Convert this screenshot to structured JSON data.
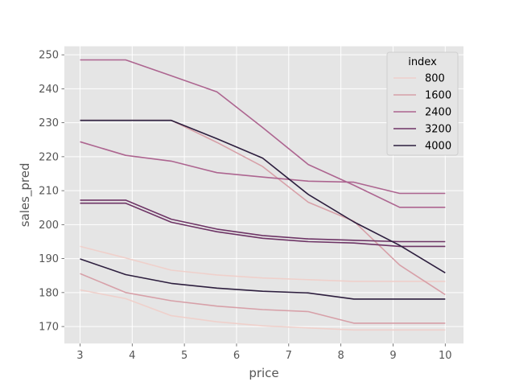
{
  "chart_data": {
    "type": "line",
    "title": "",
    "xlabel": "price",
    "ylabel": "sales_pred",
    "xlim": [
      2.7,
      10.35
    ],
    "ylim": [
      165,
      252.5
    ],
    "xticks": [
      3,
      4,
      5,
      6,
      7,
      8,
      9,
      10
    ],
    "yticks": [
      170,
      180,
      190,
      200,
      210,
      220,
      230,
      240,
      250
    ],
    "grid": true,
    "style": "ggplot",
    "legend": {
      "title": "index",
      "placement": "top-right",
      "labels": [
        "800",
        "1600",
        "2400",
        "3200",
        "4000"
      ]
    },
    "series": [
      {
        "name": "800",
        "color": "#efd0cb",
        "lines": [
          {
            "x": [
              3,
              3.875,
              4.75,
              5.625,
              6.5,
              7.375,
              8.25,
              9.125,
              10
            ],
            "y": [
              193.6,
              190.2,
              186.6,
              185.2,
              184.3,
              183.8,
              183.3,
              183.3,
              183.3
            ]
          },
          {
            "x": [
              3,
              3.875,
              4.75,
              5.625,
              6.5,
              7.375,
              8.25,
              9.125,
              10
            ],
            "y": [
              180.8,
              178.2,
              173.2,
              171.4,
              170.2,
              169.6,
              169.0,
              169.0,
              169.0
            ]
          }
        ]
      },
      {
        "name": "1600",
        "color": "#d7a0a8",
        "lines": [
          {
            "x": [
              3,
              3.875,
              4.75,
              5.625,
              6.5,
              7.375,
              8.25,
              9.125,
              10
            ],
            "y": [
              185.6,
              180.0,
              177.6,
              176.0,
              175.0,
              174.4,
              171.0,
              171.0,
              171.0
            ]
          },
          {
            "x": [
              3,
              3.875,
              4.75,
              5.625,
              6.5,
              7.375,
              8.25,
              9.125,
              10
            ],
            "y": [
              230.7,
              230.7,
              230.7,
              224.2,
              217.1,
              206.6,
              201.0,
              188.1,
              179.4
            ]
          }
        ]
      },
      {
        "name": "2400",
        "color": "#ad6590",
        "lines": [
          {
            "x": [
              3,
              3.875,
              4.75,
              5.625,
              6.5,
              7.375,
              8.25,
              9.125,
              10
            ],
            "y": [
              224.4,
              220.4,
              218.7,
              215.3,
              214.0,
              212.8,
              212.5,
              209.2,
              209.2
            ]
          },
          {
            "x": [
              3,
              3.875,
              4.75,
              5.625,
              6.5,
              7.375,
              8.25,
              9.125,
              10
            ],
            "y": [
              248.5,
              248.5,
              243.8,
              239.1,
              228.6,
              217.7,
              211.6,
              205.1,
              205.1
            ]
          }
        ]
      },
      {
        "name": "3200",
        "color": "#6e3566",
        "lines": [
          {
            "x": [
              3,
              3.875,
              4.75,
              5.625,
              6.5,
              7.375,
              8.25,
              9.125,
              10
            ],
            "y": [
              206.3,
              206.3,
              200.7,
              197.9,
              196.0,
              195.0,
              194.6,
              193.6,
              193.6
            ]
          },
          {
            "x": [
              3,
              3.875,
              4.75,
              5.625,
              6.5,
              7.375,
              8.25,
              9.125,
              10
            ],
            "y": [
              207.2,
              207.2,
              201.6,
              198.7,
              196.8,
              195.8,
              195.4,
              195.0,
              195.0
            ]
          }
        ]
      },
      {
        "name": "4000",
        "color": "#2d1e3e",
        "lines": [
          {
            "x": [
              3,
              3.875,
              4.75,
              5.625,
              6.5,
              7.375,
              8.25,
              9.125,
              10
            ],
            "y": [
              230.7,
              230.7,
              230.7,
              225.3,
              219.6,
              208.9,
              200.8,
              193.9,
              185.8
            ]
          },
          {
            "x": [
              3,
              3.875,
              4.75,
              5.625,
              6.5,
              7.375,
              8.25,
              9.125,
              10
            ],
            "y": [
              189.9,
              185.3,
              182.7,
              181.3,
              180.4,
              179.9,
              178.1,
              178.1,
              178.1
            ]
          }
        ]
      }
    ]
  }
}
